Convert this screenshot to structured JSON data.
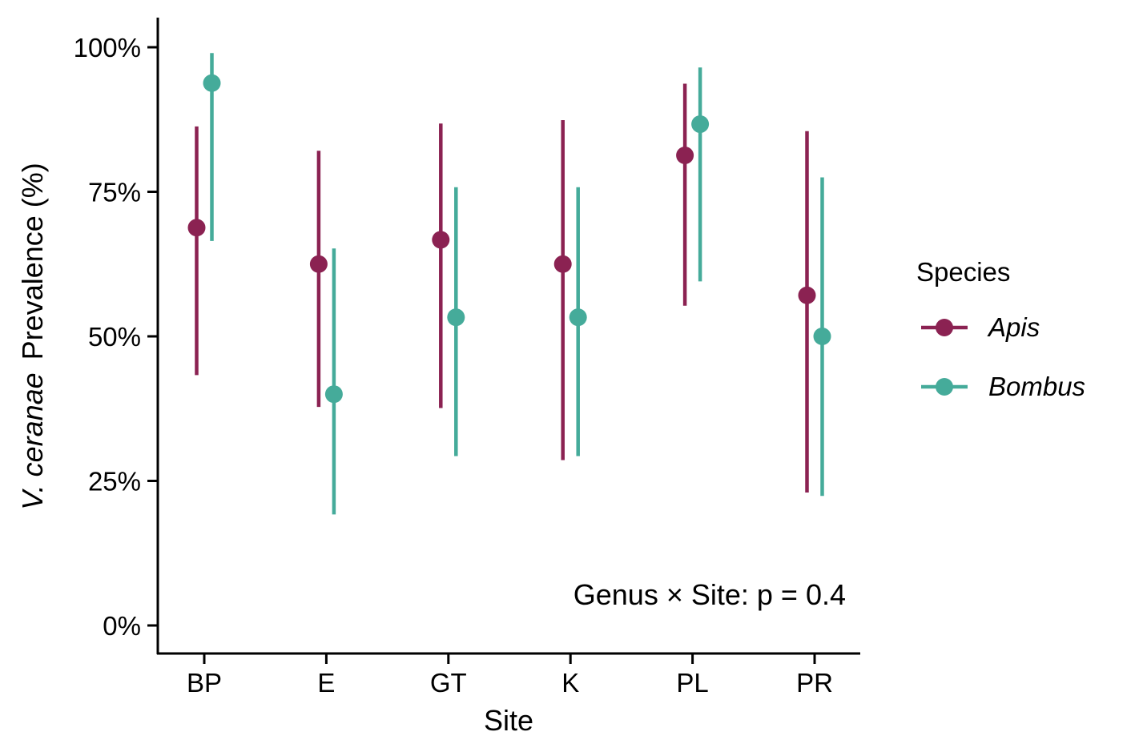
{
  "chart_data": {
    "type": "scatter",
    "subtype": "pointrange-dodged",
    "categories": [
      "BP",
      "E",
      "GT",
      "K",
      "PL",
      "PR"
    ],
    "xlabel": "Site",
    "ylabel_italic": "V. ceranae",
    "ylabel_rest": "Prevalence (%)",
    "ylim": [
      0,
      1
    ],
    "yticks": [
      0,
      0.25,
      0.5,
      0.75,
      1.0
    ],
    "ytick_labels": [
      "0%",
      "25%",
      "50%",
      "75%",
      "100%"
    ],
    "grid": false,
    "legend": {
      "title": "Species",
      "placement": "right"
    },
    "series": [
      {
        "name": "Apis",
        "color": "#8B2252",
        "values": [
          0.688,
          0.625,
          0.667,
          0.625,
          0.813,
          0.571
        ],
        "lower": [
          0.433,
          0.378,
          0.376,
          0.286,
          0.553,
          0.23
        ],
        "upper": [
          0.863,
          0.821,
          0.868,
          0.874,
          0.937,
          0.855
        ]
      },
      {
        "name": "Bombus",
        "color": "#45AB9A",
        "values": [
          0.938,
          0.4,
          0.533,
          0.533,
          0.867,
          0.5
        ],
        "lower": [
          0.665,
          0.192,
          0.293,
          0.293,
          0.595,
          0.224
        ],
        "upper": [
          0.99,
          0.652,
          0.758,
          0.758,
          0.965,
          0.775
        ]
      }
    ],
    "annotation": "Genus × Site: p = 0.4"
  }
}
